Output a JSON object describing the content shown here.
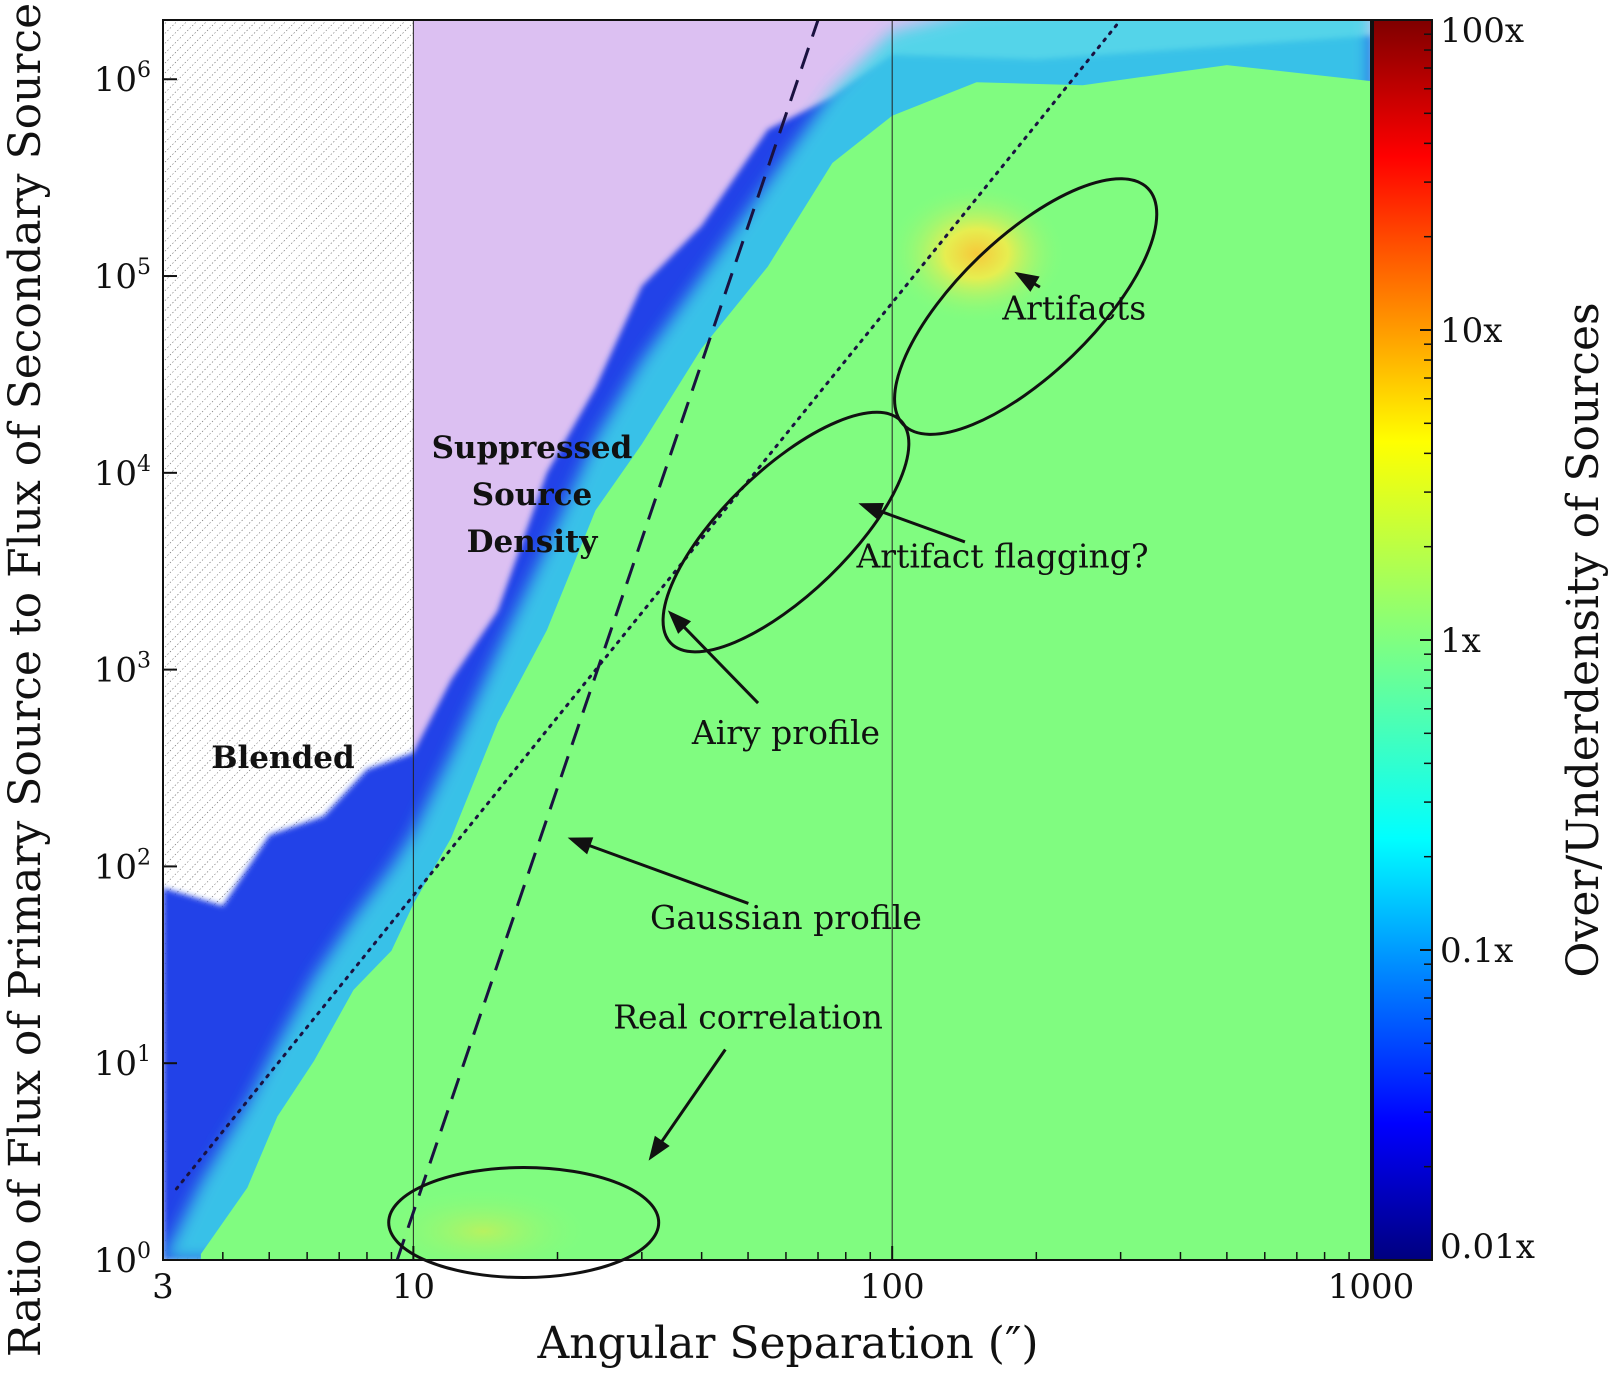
{
  "chart_data": {
    "type": "heatmap",
    "title": "",
    "xlabel": "Angular Separation (″)",
    "ylabel": "Ratio of Flux of Primary Source to Flux of Secondary Source",
    "x_scale": "log",
    "y_scale": "log",
    "xlim": [
      3,
      1000
    ],
    "ylim": [
      1,
      2000000
    ],
    "x_ticks": [
      {
        "value": 3,
        "label": "3"
      },
      {
        "value": 10,
        "label": "10"
      },
      {
        "value": 100,
        "label": "100"
      },
      {
        "value": 1000,
        "label": "1000"
      }
    ],
    "y_ticks": [
      {
        "value": 1,
        "base": "10",
        "exp": "0"
      },
      {
        "value": 10,
        "base": "10",
        "exp": "1"
      },
      {
        "value": 100,
        "base": "10",
        "exp": "2"
      },
      {
        "value": 1000,
        "base": "10",
        "exp": "3"
      },
      {
        "value": 10000,
        "base": "10",
        "exp": "4"
      },
      {
        "value": 100000,
        "base": "10",
        "exp": "5"
      },
      {
        "value": 1000000,
        "base": "10",
        "exp": "6"
      }
    ],
    "colorbar": {
      "label": "Over/Underdensity of Sources",
      "scale": "log",
      "range": [
        0.01,
        100
      ],
      "colormap": "jet",
      "ticks": [
        {
          "value": 0.01,
          "label": "0.01x"
        },
        {
          "value": 0.1,
          "label": "0.1x"
        },
        {
          "value": 1,
          "label": "1x"
        },
        {
          "value": 10,
          "label": "10x"
        },
        {
          "value": 100,
          "label": "100x"
        }
      ]
    },
    "regions": [
      {
        "label": "Blended",
        "x_range": [
          3,
          10
        ],
        "fill": "hatched"
      },
      {
        "label": "Suppressed Source Density",
        "lines": [
          "Suppressed",
          "Source",
          "Density"
        ],
        "fill": "#dcc0f2"
      }
    ],
    "reference_lines": [
      {
        "name": "Gaussian profile",
        "style": "dashed",
        "points": [
          [
            9.25,
            1
          ],
          [
            70,
            2000000
          ]
        ]
      },
      {
        "name": "Airy profile",
        "style": "dotted",
        "points": [
          [
            3.2,
            2.3
          ],
          [
            300,
            2000000
          ]
        ]
      }
    ],
    "vertical_lines": [
      10,
      100
    ],
    "annotations": [
      {
        "text": "Artifacts",
        "text_at": [
          240,
          60000
        ],
        "arrow_to": [
          180,
          105000
        ]
      },
      {
        "text": "Artifact flagging?",
        "text_at": [
          170,
          3300
        ],
        "arrow_to": [
          85,
          7000
        ]
      },
      {
        "text": "Airy profile",
        "text_at": [
          60,
          420
        ],
        "arrow_to": [
          34,
          2000
        ]
      },
      {
        "text": "Gaussian profile",
        "text_at": [
          60,
          48
        ],
        "arrow_to": [
          21,
          140
        ]
      },
      {
        "text": "Real correlation",
        "text_at": [
          50,
          15
        ],
        "arrow_to": [
          31,
          3.2
        ]
      }
    ],
    "ellipses": [
      {
        "label": "Real correlation",
        "center": [
          17,
          1.55
        ]
      },
      {
        "label": "Artifact flagging?",
        "center": [
          60,
          5000
        ]
      },
      {
        "label": "Artifacts",
        "center": [
          190,
          70000
        ]
      }
    ],
    "colors": {
      "background_density": "#80fc80",
      "suppressed": "#dcc0f2",
      "underdense": "#1f3fe6",
      "overdense_peak": "#f4d838"
    }
  }
}
